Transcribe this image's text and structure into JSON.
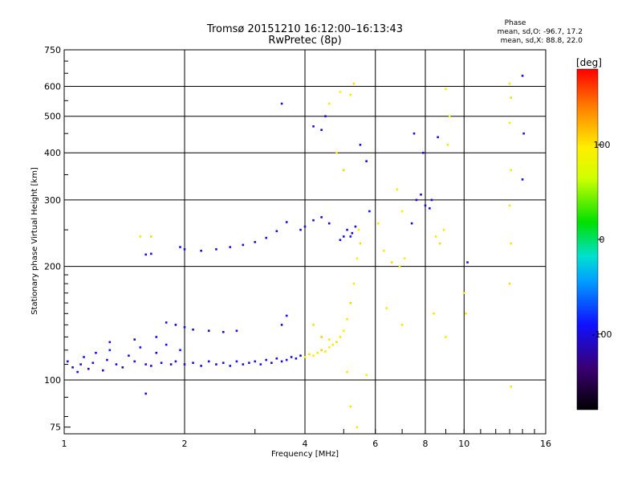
{
  "chart_data": {
    "type": "scatter",
    "title": "Tromsø 20151210 16:12:00–16:13:43",
    "subtitle": "RwPretec (8p)",
    "xlabel": "Frequency [MHz]",
    "ylabel": "Stationary phase Virtual Height [km]",
    "xscale": "log",
    "yscale": "log",
    "xlim": [
      1,
      16
    ],
    "ylim": [
      72,
      750
    ],
    "xticks": [
      1,
      2,
      4,
      6,
      8,
      10,
      16
    ],
    "yticks": [
      75,
      100,
      200,
      300,
      400,
      500,
      600,
      750
    ],
    "grid": true,
    "phase_box": {
      "title": "Phase",
      "line_o": "mean, sd,O: -96.7, 17.2",
      "line_x": "mean, sd,X:  88.8, 22.0"
    },
    "colorbar": {
      "label": "[deg]",
      "min": -180,
      "max": 180,
      "ticks": [
        100,
        0,
        -100
      ]
    },
    "series": [
      {
        "points": [
          [
            1.02,
            112,
            -100
          ],
          [
            1.05,
            108,
            -110
          ],
          [
            1.08,
            105,
            -95
          ],
          [
            1.1,
            110,
            -105
          ],
          [
            1.12,
            115,
            -90
          ],
          [
            1.15,
            107,
            -115
          ],
          [
            1.18,
            111,
            -100
          ],
          [
            1.2,
            118,
            -95
          ],
          [
            1.25,
            106,
            -110
          ],
          [
            1.28,
            113,
            -100
          ],
          [
            1.3,
            120,
            -85
          ],
          [
            1.35,
            110,
            -100
          ],
          [
            1.4,
            108,
            -120
          ],
          [
            1.45,
            116,
            -95
          ],
          [
            1.5,
            112,
            -100
          ],
          [
            1.55,
            122,
            -90
          ],
          [
            1.6,
            110,
            -105
          ],
          [
            1.65,
            109,
            -100
          ],
          [
            1.7,
            118,
            -110
          ],
          [
            1.75,
            111,
            -95
          ],
          [
            1.8,
            124,
            -100
          ],
          [
            1.85,
            110,
            -115
          ],
          [
            1.9,
            112,
            -100
          ],
          [
            1.95,
            120,
            -90
          ],
          [
            2.0,
            110,
            -100
          ],
          [
            2.1,
            111,
            -105
          ],
          [
            2.2,
            109,
            -100
          ],
          [
            2.3,
            112,
            -95
          ],
          [
            2.4,
            110,
            -110
          ],
          [
            2.5,
            111,
            -100
          ],
          [
            2.6,
            109,
            -100
          ],
          [
            2.7,
            112,
            -90
          ],
          [
            2.8,
            110,
            -105
          ],
          [
            2.9,
            111,
            -100
          ],
          [
            3.0,
            112,
            -100
          ],
          [
            3.1,
            110,
            -95
          ],
          [
            3.2,
            113,
            -100
          ],
          [
            3.3,
            111,
            -110
          ],
          [
            3.4,
            114,
            -100
          ],
          [
            3.5,
            112,
            -100
          ],
          [
            3.6,
            113,
            -90
          ],
          [
            3.7,
            115,
            -100
          ],
          [
            3.8,
            114,
            -95
          ],
          [
            3.9,
            116,
            -100
          ],
          [
            4.0,
            115,
            100
          ],
          [
            4.1,
            117,
            105
          ],
          [
            4.2,
            116,
            95
          ],
          [
            4.3,
            118,
            100
          ],
          [
            4.4,
            120,
            110
          ],
          [
            4.5,
            119,
            100
          ],
          [
            4.6,
            122,
            95
          ],
          [
            4.7,
            124,
            100
          ],
          [
            4.8,
            126,
            105
          ],
          [
            4.9,
            130,
            100
          ],
          [
            5.0,
            135,
            95
          ],
          [
            5.1,
            145,
            100
          ],
          [
            5.2,
            160,
            110
          ],
          [
            5.3,
            180,
            100
          ],
          [
            5.4,
            210,
            95
          ],
          [
            5.5,
            230,
            105
          ],
          [
            5.45,
            250,
            100
          ],
          [
            5.35,
            255,
            -100
          ],
          [
            5.25,
            245,
            -110
          ],
          [
            5.2,
            240,
            -90
          ],
          [
            5.1,
            250,
            -100
          ],
          [
            5.0,
            240,
            -100
          ],
          [
            4.9,
            235,
            -95
          ],
          [
            4.6,
            260,
            -100
          ],
          [
            4.4,
            270,
            -105
          ],
          [
            4.2,
            265,
            -100
          ],
          [
            4.0,
            255,
            -100
          ],
          [
            3.9,
            250,
            -110
          ],
          [
            3.6,
            262,
            -100
          ],
          [
            3.4,
            248,
            -95
          ],
          [
            3.2,
            238,
            -100
          ],
          [
            3.0,
            232,
            -100
          ],
          [
            2.8,
            228,
            -105
          ],
          [
            2.6,
            225,
            -100
          ],
          [
            2.4,
            222,
            -100
          ],
          [
            2.2,
            220,
            -110
          ],
          [
            2.0,
            222,
            -100
          ],
          [
            1.95,
            225,
            -90
          ],
          [
            1.6,
            215,
            -100
          ],
          [
            1.65,
            216,
            -100
          ],
          [
            1.55,
            240,
            100
          ],
          [
            1.65,
            240,
            105
          ],
          [
            1.8,
            142,
            -100
          ],
          [
            1.9,
            140,
            -110
          ],
          [
            2.0,
            138,
            -95
          ],
          [
            2.1,
            136,
            -100
          ],
          [
            2.3,
            135,
            -120
          ],
          [
            2.5,
            134,
            -100
          ],
          [
            2.7,
            135,
            -100
          ],
          [
            1.7,
            130,
            -100
          ],
          [
            1.5,
            128,
            -110
          ],
          [
            1.3,
            126,
            -100
          ],
          [
            3.5,
            140,
            -100
          ],
          [
            3.6,
            148,
            -90
          ],
          [
            4.2,
            140,
            100
          ],
          [
            4.4,
            130,
            110
          ],
          [
            4.6,
            128,
            100
          ],
          [
            5.2,
            570,
            100
          ],
          [
            5.3,
            610,
            105
          ],
          [
            4.9,
            580,
            95
          ],
          [
            4.6,
            540,
            100
          ],
          [
            4.2,
            470,
            -100
          ],
          [
            4.4,
            460,
            -110
          ],
          [
            4.5,
            500,
            -100
          ],
          [
            3.5,
            540,
            -100
          ],
          [
            4.8,
            400,
            100
          ],
          [
            5.0,
            360,
            105
          ],
          [
            5.5,
            420,
            -100
          ],
          [
            5.7,
            380,
            -100
          ],
          [
            5.8,
            280,
            -90
          ],
          [
            6.1,
            260,
            100
          ],
          [
            6.3,
            220,
            100
          ],
          [
            6.6,
            205,
            105
          ],
          [
            6.9,
            200,
            100
          ],
          [
            7.1,
            210,
            95
          ],
          [
            6.8,
            320,
            100
          ],
          [
            7.0,
            280,
            100
          ],
          [
            7.4,
            260,
            -100
          ],
          [
            7.6,
            300,
            -100
          ],
          [
            7.8,
            310,
            -110
          ],
          [
            8.0,
            290,
            -100
          ],
          [
            8.2,
            285,
            -100
          ],
          [
            8.3,
            300,
            -95
          ],
          [
            8.5,
            240,
            100
          ],
          [
            8.7,
            230,
            105
          ],
          [
            8.9,
            250,
            100
          ],
          [
            9.1,
            420,
            100
          ],
          [
            9.2,
            500,
            95
          ],
          [
            8.6,
            440,
            -100
          ],
          [
            7.5,
            450,
            -100
          ],
          [
            7.9,
            400,
            -100
          ],
          [
            9.0,
            590,
            100
          ],
          [
            6.4,
            155,
            100
          ],
          [
            7.0,
            140,
            100
          ],
          [
            8.4,
            150,
            100
          ],
          [
            9.0,
            130,
            100
          ],
          [
            10.2,
            205,
            -100
          ],
          [
            10.0,
            170,
            100
          ],
          [
            10.1,
            150,
            100
          ],
          [
            13.0,
            610,
            100
          ],
          [
            13.1,
            560,
            105
          ],
          [
            13.0,
            480,
            100
          ],
          [
            13.1,
            360,
            100
          ],
          [
            13.0,
            290,
            100
          ],
          [
            13.1,
            230,
            100
          ],
          [
            13.0,
            180,
            105
          ],
          [
            13.1,
            96,
            100
          ],
          [
            14.0,
            640,
            -100
          ],
          [
            14.1,
            450,
            -100
          ],
          [
            14.0,
            340,
            -100
          ],
          [
            1.6,
            92,
            -100
          ],
          [
            5.2,
            85,
            100
          ],
          [
            5.4,
            75,
            100
          ],
          [
            5.1,
            105,
            100
          ],
          [
            5.7,
            103,
            100
          ]
        ]
      }
    ]
  }
}
